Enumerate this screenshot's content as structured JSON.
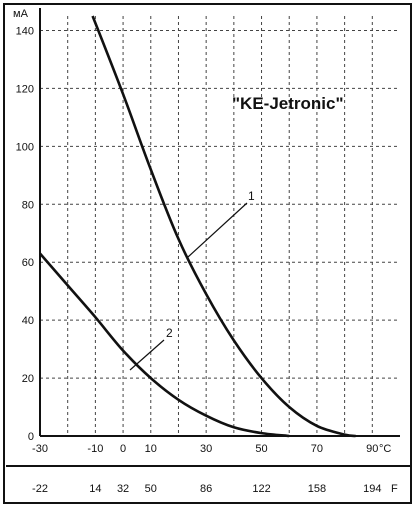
{
  "chart_data": {
    "type": "line",
    "title": "\"KE-Jetronic\"",
    "ylabel": "мА",
    "xlabel": "°C",
    "x2label": "F",
    "ylim": [
      0,
      145
    ],
    "xlim": [
      -30,
      100
    ],
    "yticks": [
      0,
      20,
      40,
      60,
      80,
      100,
      120,
      140
    ],
    "xticks_c": [
      -30,
      -10,
      0,
      10,
      30,
      50,
      70,
      90
    ],
    "xticks_f": [
      "-22",
      "14",
      "32",
      "50",
      "86",
      "122",
      "158",
      "194"
    ],
    "grid": true,
    "series": [
      {
        "name": "1",
        "x": [
          -11,
          0,
          10,
          20,
          30,
          40,
          50,
          60,
          70,
          80,
          84
        ],
        "y": [
          145,
          118,
          92,
          68,
          49,
          33,
          20,
          10,
          3.5,
          0.5,
          0
        ]
      },
      {
        "name": "2",
        "x": [
          -30,
          -20,
          -10,
          0,
          10,
          20,
          30,
          40,
          50,
          60
        ],
        "y": [
          63,
          52,
          41,
          29.5,
          20,
          12.5,
          7,
          3,
          1,
          0
        ]
      }
    ]
  },
  "colors": {
    "ink": "#111111",
    "background": "#ffffff"
  }
}
